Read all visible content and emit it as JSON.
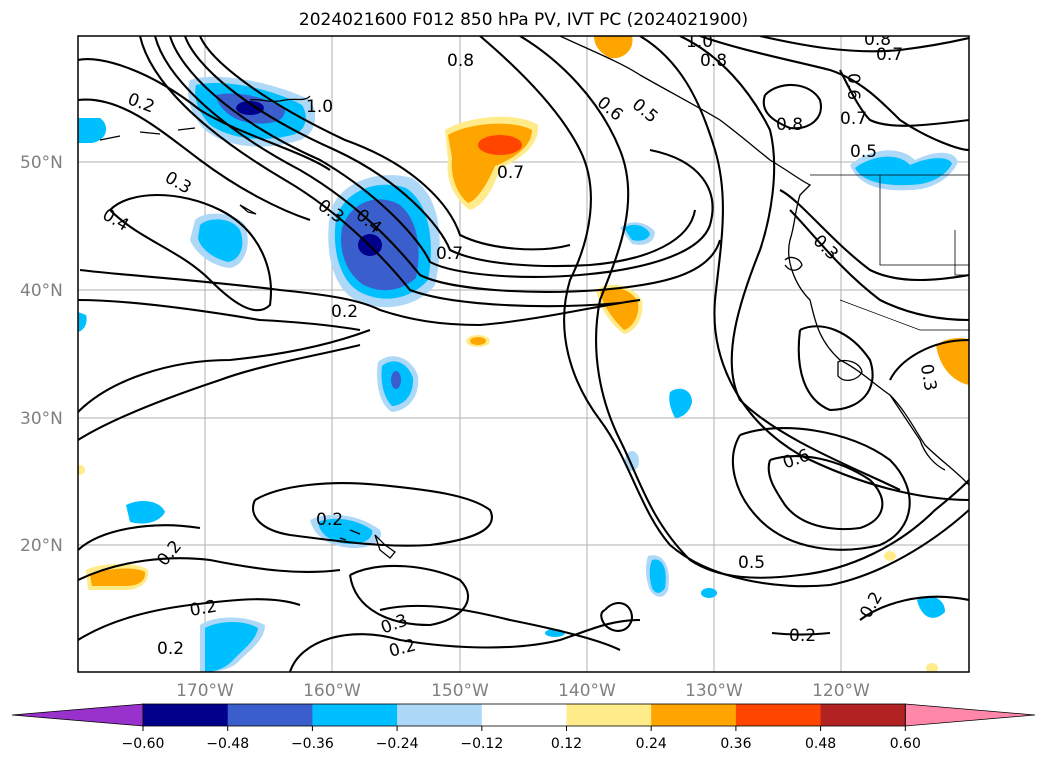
{
  "title": "2024021600 F012 850 hPa PV, IVT PC (2024021900)",
  "lat_labels": [
    "50°N",
    "40°N",
    "30°N",
    "20°N"
  ],
  "lon_labels": [
    "170°W",
    "160°W",
    "150°W",
    "140°W",
    "130°W",
    "120°W"
  ],
  "contour_labels": [
    "0.2",
    "0.3",
    "0.4",
    "1.0",
    "0.8",
    "0.7",
    "0.3",
    "0.4",
    "0.7",
    "0.2",
    "0.6",
    "0.5",
    "0.8",
    "1.0",
    "0.8",
    "0.7",
    "0.8",
    "0.7",
    "0.5",
    "0.3",
    "0.3",
    "0.6",
    "0.5",
    "0.2",
    "0.2",
    "0.2",
    "0.2",
    "0.3",
    "0.2",
    "0.2",
    "0.2",
    "0.6"
  ],
  "colorbar": {
    "ticks": [
      "−0.60",
      "−0.48",
      "−0.36",
      "−0.24",
      "−0.12",
      "0.12",
      "0.24",
      "0.36",
      "0.48",
      "0.60"
    ],
    "colors": [
      "#9932cc",
      "#00008b",
      "#3a5fcd",
      "#00bfff",
      "#add8f7",
      "#ffffff",
      "#ffeb8a",
      "#ffa500",
      "#ff4500",
      "#b22222",
      "#ff88aa"
    ]
  }
}
